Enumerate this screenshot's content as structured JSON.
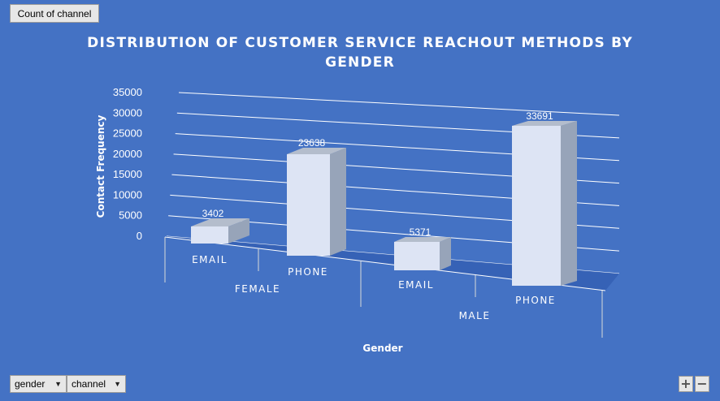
{
  "toolbar": {
    "value_field_label": "Count  of channel",
    "row_fields": [
      {
        "label": "gender"
      },
      {
        "label": "channel"
      }
    ]
  },
  "zoom": {
    "in_label": "+",
    "out_label": "−"
  },
  "chart_data": {
    "type": "bar",
    "title": "DISTRIBUTION OF CUSTOMER SERVICE REACHOUT METHODS BY GENDER",
    "xlabel": "Gender",
    "ylabel": "Contact Frequency",
    "ylim": [
      0,
      35000
    ],
    "yticks": [
      0,
      5000,
      10000,
      15000,
      20000,
      25000,
      30000,
      35000
    ],
    "groups": [
      "FEMALE",
      "MALE"
    ],
    "categories": [
      "EMAIL",
      "PHONE",
      "EMAIL",
      "PHONE"
    ],
    "values": [
      3402,
      23638,
      5371,
      33691
    ],
    "data_labels": [
      "3402",
      "23638",
      "5371",
      "33691"
    ],
    "grid": true,
    "legend": "none",
    "style": "3d-column"
  },
  "colors": {
    "background": "#4472c4",
    "bar_front": "#dde4f4",
    "bar_side": "#97a4b9",
    "bar_top": "#b4bdcc",
    "floor": "#3561b5"
  }
}
